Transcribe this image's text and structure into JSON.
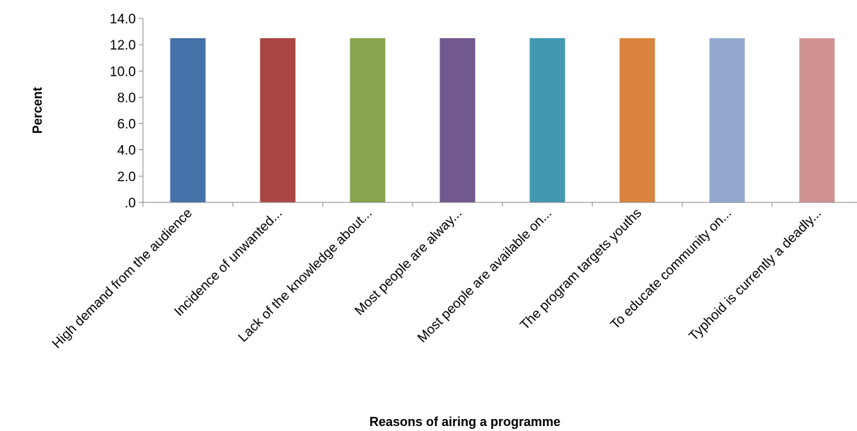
{
  "chart_data": {
    "type": "bar",
    "title": "",
    "xlabel": "Reasons of airing a programme",
    "ylabel": "Percent",
    "ylim": [
      0,
      14
    ],
    "yticks": [
      ".0",
      "2.0",
      "4.0",
      "6.0",
      "8.0",
      "10.0",
      "12.0",
      "14.0"
    ],
    "grid": false,
    "legend": "none",
    "categories": [
      "High demand from the audience",
      "Incidence of unwanted...",
      "Lack of the knowledge about...",
      "Most people are alway...",
      "Most people are available on...",
      "The program targets youths",
      "To educate community on...",
      "Typhoid is currently a deadly..."
    ],
    "values": [
      12.5,
      12.5,
      12.5,
      12.5,
      12.5,
      12.5,
      12.5,
      12.5
    ],
    "colors": [
      "#4472a8",
      "#aa4643",
      "#89a54e",
      "#71588f",
      "#4198af",
      "#db843d",
      "#93a9cf",
      "#d19392"
    ]
  }
}
